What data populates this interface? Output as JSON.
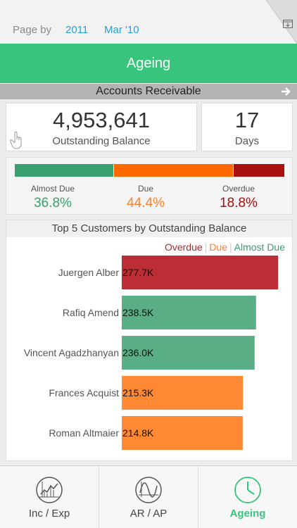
{
  "filters": {
    "page_by_label": "Page by",
    "year": "2011",
    "month": "Mar '10"
  },
  "title": "Ageing",
  "section": {
    "label": "Accounts Receivable"
  },
  "kpis": {
    "balance_value": "4,953,641",
    "balance_label": "Outstanding Balance",
    "days_value": "17",
    "days_label": "Days"
  },
  "distribution": {
    "segments": [
      {
        "name": "Almost Due",
        "pct": "36.8%",
        "share": 0.368,
        "color": "#3a9f6e"
      },
      {
        "name": "Due",
        "pct": "44.4%",
        "share": 0.444,
        "color": "#ff6a00"
      },
      {
        "name": "Overdue",
        "pct": "18.8%",
        "share": 0.188,
        "color": "#a80f0f"
      }
    ]
  },
  "chart_data": {
    "type": "bar",
    "title": "Top 5 Customers by Outstanding Balance",
    "categories": [
      "Juergen Alber",
      "Rafiq Amend",
      "Vincent Agadzhanyan",
      "Frances Acquist",
      "Roman Altmaier"
    ],
    "values": [
      277.7,
      238.5,
      236.0,
      215.3,
      214.8
    ],
    "value_labels": [
      "277.7K",
      "238.5K",
      "236.0K",
      "215.3K",
      "214.8K"
    ],
    "bar_status": [
      "Overdue",
      "Almost Due",
      "Almost Due",
      "Due",
      "Due"
    ],
    "xlabel": "",
    "ylabel": "",
    "xlim": [
      0,
      300
    ],
    "legend": [
      {
        "name": "Overdue",
        "color": "#b2262b"
      },
      {
        "name": "Due",
        "color": "#ff7f2a"
      },
      {
        "name": "Almost Due",
        "color": "#3a9f6e"
      }
    ],
    "colors": {
      "Overdue": "#bd2d35",
      "Due": "#ff8a33",
      "Almost Due": "#5aae85"
    },
    "grid": false
  },
  "tabs": [
    {
      "label": "Inc / Exp",
      "icon": "line-chart-icon",
      "active": false
    },
    {
      "label": "AR / AP",
      "icon": "wave-chart-icon",
      "active": false
    },
    {
      "label": "Ageing",
      "icon": "clock-icon",
      "active": true
    }
  ]
}
